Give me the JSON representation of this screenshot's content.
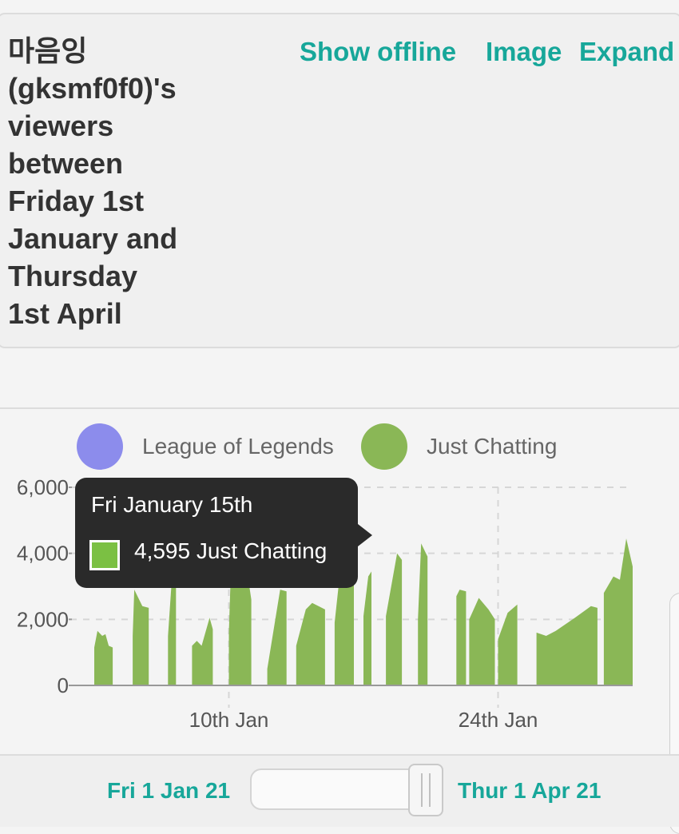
{
  "header": {
    "title_lines": [
      "마음잉",
      "(gksmf0f0)'s",
      "viewers",
      "between",
      "Friday 1st",
      "January and",
      "Thursday",
      "1st April"
    ],
    "show_offline_label": "Show offline",
    "image_label": "Image",
    "expand_label": "Expand"
  },
  "legend": [
    {
      "label": "League of Legends",
      "color": "#8c8cec"
    },
    {
      "label": "Just Chatting",
      "color": "#8ab756"
    }
  ],
  "tooltip": {
    "date": "Fri January 15th",
    "value_text": "4,595 Just Chatting",
    "swatch_color": "#7bc043"
  },
  "chart_data": {
    "type": "area",
    "title": "",
    "xlabel": "",
    "ylabel": "",
    "x_range": [
      "2021-01-03",
      "2021-01-31"
    ],
    "ylim": [
      0,
      6000
    ],
    "y_ticks": [
      "0",
      "2,000",
      "4,000",
      "6,000"
    ],
    "x_ticks": [
      "10th Jan",
      "24th Jan"
    ],
    "grid": true,
    "legend_position": "top",
    "highlight": {
      "x": "2021-01-15",
      "y": 4595,
      "color": "#6fc12f"
    },
    "series": [
      {
        "name": "League of Legends",
        "color": "#8c8cec",
        "segments": []
      },
      {
        "name": "Just Chatting",
        "color": "#8ab756",
        "segments": [
          [
            [
              "2021-01-03T00:00",
              1150
            ],
            [
              "2021-01-03T04:00",
              1650
            ],
            [
              "2021-01-03T10:00",
              1500
            ],
            [
              "2021-01-03T14:00",
              1550
            ],
            [
              "2021-01-03T18:00",
              1200
            ],
            [
              "2021-01-03T23:00",
              1150
            ]
          ],
          [
            [
              "2021-01-05T00:00",
              1500
            ],
            [
              "2021-01-05T02:00",
              2900
            ],
            [
              "2021-01-05T12:00",
              2400
            ],
            [
              "2021-01-05T20:00",
              2350
            ]
          ],
          [
            [
              "2021-01-06T20:00",
              1500
            ],
            [
              "2021-01-07T02:00",
              3650
            ],
            [
              "2021-01-07T06:00",
              3500
            ]
          ],
          [
            [
              "2021-01-08T02:00",
              1200
            ],
            [
              "2021-01-08T08:00",
              1350
            ],
            [
              "2021-01-08T14:00",
              1200
            ],
            [
              "2021-01-09T00:00",
              2050
            ],
            [
              "2021-01-09T04:00",
              1700
            ]
          ],
          [
            [
              "2021-01-10T00:00",
              1600
            ],
            [
              "2021-01-10T03:00",
              3850
            ],
            [
              "2021-01-11T00:00",
              3250
            ],
            [
              "2021-01-11T04:00",
              2600
            ]
          ],
          [
            [
              "2021-01-12T00:00",
              500
            ],
            [
              "2021-01-12T16:00",
              2900
            ],
            [
              "2021-01-13T00:00",
              2850
            ]
          ],
          [
            [
              "2021-01-13T12:00",
              1200
            ],
            [
              "2021-01-14T00:00",
              2300
            ],
            [
              "2021-01-14T08:00",
              2500
            ],
            [
              "2021-01-15T00:00",
              2300
            ]
          ],
          [
            [
              "2021-01-15T12:00",
              1900
            ],
            [
              "2021-01-16T00:00",
              4595
            ],
            [
              "2021-01-16T12:00",
              4000
            ]
          ],
          [
            [
              "2021-01-17T00:00",
              2100
            ],
            [
              "2021-01-17T06:00",
              3300
            ],
            [
              "2021-01-17T10:00",
              3450
            ]
          ],
          [
            [
              "2021-01-18T04:00",
              2100
            ],
            [
              "2021-01-18T18:00",
              4000
            ],
            [
              "2021-01-19T00:00",
              3800
            ]
          ],
          [
            [
              "2021-01-19T20:00",
              2000
            ],
            [
              "2021-01-20T00:00",
              4300
            ],
            [
              "2021-01-20T08:00",
              3900
            ]
          ],
          [
            [
              "2021-01-21T20:00",
              2700
            ],
            [
              "2021-01-22T00:00",
              2900
            ],
            [
              "2021-01-22T08:00",
              2850
            ]
          ],
          [
            [
              "2021-01-22T12:00",
              2000
            ],
            [
              "2021-01-23T00:00",
              2650
            ],
            [
              "2021-01-23T12:00",
              2300
            ],
            [
              "2021-01-23T20:00",
              2000
            ]
          ],
          [
            [
              "2021-01-24T00:00",
              1400
            ],
            [
              "2021-01-24T12:00",
              2200
            ],
            [
              "2021-01-25T00:00",
              2450
            ]
          ],
          [
            [
              "2021-01-26T00:00",
              1600
            ],
            [
              "2021-01-26T12:00",
              1500
            ],
            [
              "2021-01-27T00:00",
              1650
            ],
            [
              "2021-01-28T00:00",
              2050
            ],
            [
              "2021-01-28T20:00",
              2400
            ],
            [
              "2021-01-29T04:00",
              2350
            ]
          ],
          [
            [
              "2021-01-29T12:00",
              2800
            ],
            [
              "2021-01-30T00:00",
              3300
            ],
            [
              "2021-01-30T08:00",
              3200
            ],
            [
              "2021-01-30T16:00",
              4450
            ],
            [
              "2021-01-31T00:00",
              3600
            ]
          ]
        ]
      }
    ]
  },
  "footer": {
    "range_start": "Fri 1 Jan 21",
    "range_end": "Thur 1 Apr 21",
    "slider_position": 1.0
  }
}
